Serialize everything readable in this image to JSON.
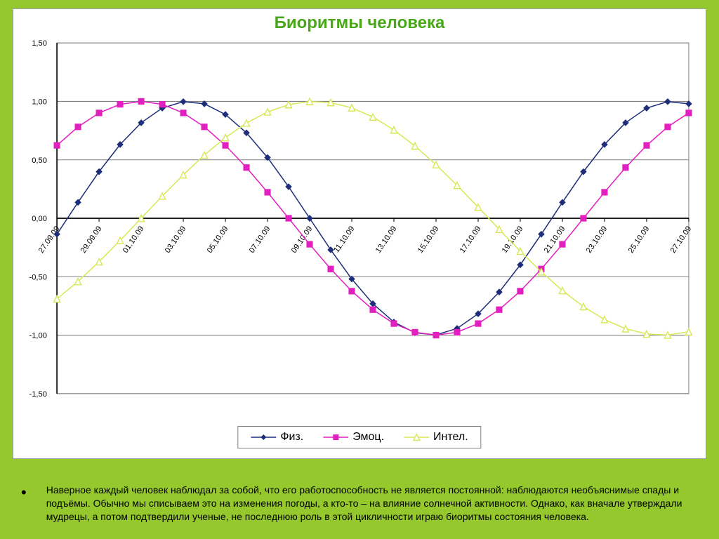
{
  "title": "Биоритмы человека",
  "caption": "Наверное каждый человек наблюдал за собой, что его работоспособность не является постоянной:  наблюдаются необъяснимые спады и подъёмы. Обычно мы  списываем это на изменения погоды, а  кто-то – на влияние солнечной активности. Однако, как вначале  утверждали мудрецы, а потом подтвердили ученые, не последнюю роль в этой цикличности играю биоритмы состояния человека.",
  "chart": {
    "type": "line",
    "background_color": "#ffffff",
    "grid_color": "#808080",
    "axis_color": "#000000",
    "title_color": "#4aa71a",
    "title_fontsize": 24,
    "ylim": [
      -1.5,
      1.5
    ],
    "yticks": [
      -1.5,
      -1.0,
      -0.5,
      0.0,
      0.5,
      1.0,
      1.5
    ],
    "ytick_labels": [
      "-1,50",
      "-1,00",
      "-0,50",
      "0,00",
      "0,50",
      "1,00",
      "1,50"
    ],
    "ytick_fontsize": 11,
    "x_categories": [
      "27.09.09",
      "29.09.09",
      "01.10.09",
      "03.10.09",
      "05.10.09",
      "07.10.09",
      "09.10.09",
      "11.10.09",
      "13.10.09",
      "15.10.09",
      "17.10.09",
      "19.10.09",
      "21.10.09",
      "23.10.09",
      "25.10.09",
      "27.10.09"
    ],
    "x_labels_visible": true,
    "xtick_fontsize": 11,
    "xtick_rotation_deg": -55,
    "series_point_count": 31,
    "series": [
      {
        "key": "phys",
        "label": "Физ.",
        "color": "#1f2e7a",
        "marker": "diamond",
        "marker_size": 6,
        "line_width": 1.5,
        "period_days": 23,
        "phase_offset_days": -0.5
      },
      {
        "key": "emo",
        "label": "Эмоц.",
        "color": "#e21fbf",
        "marker": "square",
        "marker_size": 6,
        "line_width": 1.5,
        "period_days": 28,
        "phase_offset_days": 3
      },
      {
        "key": "intel",
        "label": "Интел.",
        "color": "#d9e85a",
        "marker": "triangle",
        "marker_size": 7,
        "line_width": 1.5,
        "period_days": 33,
        "phase_offset_days": -4
      }
    ],
    "legend": {
      "border_color": "#808080",
      "fontsize": 16,
      "position": "bottom-center"
    }
  },
  "slide_background": "#94c82c"
}
